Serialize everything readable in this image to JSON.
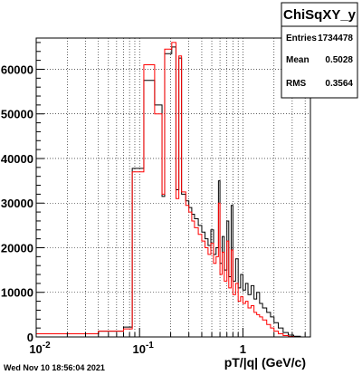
{
  "chart_data": {
    "type": "line",
    "histogram_name": "ChiSqXY_y",
    "xlabel": "pT/|q| (GeV/c)",
    "ylabel": "",
    "xscale": "log",
    "xlim": [
      0.01,
      4.5
    ],
    "ylim": [
      0,
      67000
    ],
    "grid": true,
    "x_ticks": [
      {
        "value": 0.01,
        "label": "10",
        "exp": "-2"
      },
      {
        "value": 0.1,
        "label": "10",
        "exp": "-1"
      },
      {
        "value": 1,
        "label": "1",
        "exp": ""
      }
    ],
    "y_ticks": [
      {
        "value": 0,
        "label": "0"
      },
      {
        "value": 10000,
        "label": "10000"
      },
      {
        "value": 20000,
        "label": "20000"
      },
      {
        "value": 30000,
        "label": "30000"
      },
      {
        "value": 40000,
        "label": "40000"
      },
      {
        "value": 50000,
        "label": "50000"
      },
      {
        "value": 60000,
        "label": "60000"
      }
    ],
    "series": [
      {
        "color": "#000000",
        "points": [
          [
            0.01,
            700
          ],
          [
            0.04,
            700
          ],
          [
            0.04,
            1300
          ],
          [
            0.07,
            1300
          ],
          [
            0.07,
            2200
          ],
          [
            0.085,
            2200
          ],
          [
            0.085,
            37800
          ],
          [
            0.11,
            37800
          ],
          [
            0.11,
            57500
          ],
          [
            0.14,
            57500
          ],
          [
            0.14,
            52000
          ],
          [
            0.165,
            52000
          ],
          [
            0.165,
            31500
          ],
          [
            0.175,
            31500
          ],
          [
            0.175,
            63500
          ],
          [
            0.205,
            63500
          ],
          [
            0.205,
            65000
          ],
          [
            0.225,
            65000
          ],
          [
            0.225,
            33000
          ],
          [
            0.24,
            33000
          ],
          [
            0.24,
            62500
          ],
          [
            0.255,
            62500
          ],
          [
            0.255,
            32000
          ],
          [
            0.28,
            32000
          ],
          [
            0.28,
            30500
          ],
          [
            0.3,
            30500
          ],
          [
            0.3,
            29000
          ],
          [
            0.32,
            29000
          ],
          [
            0.32,
            27500
          ],
          [
            0.34,
            27500
          ],
          [
            0.34,
            26500
          ],
          [
            0.37,
            26500
          ],
          [
            0.37,
            25000
          ],
          [
            0.4,
            25000
          ],
          [
            0.4,
            23500
          ],
          [
            0.43,
            23500
          ],
          [
            0.43,
            22000
          ],
          [
            0.46,
            22000
          ],
          [
            0.46,
            20500
          ],
          [
            0.49,
            20500
          ],
          [
            0.49,
            24000
          ],
          [
            0.52,
            24000
          ],
          [
            0.52,
            18500
          ],
          [
            0.55,
            18500
          ],
          [
            0.55,
            20000
          ],
          [
            0.58,
            20000
          ],
          [
            0.58,
            35000
          ],
          [
            0.6,
            35000
          ],
          [
            0.6,
            16500
          ],
          [
            0.63,
            16500
          ],
          [
            0.63,
            22500
          ],
          [
            0.66,
            22500
          ],
          [
            0.66,
            15000
          ],
          [
            0.7,
            15000
          ],
          [
            0.7,
            26000
          ],
          [
            0.73,
            26000
          ],
          [
            0.73,
            13500
          ],
          [
            0.77,
            13500
          ],
          [
            0.77,
            29500
          ],
          [
            0.8,
            29500
          ],
          [
            0.8,
            12500
          ],
          [
            0.85,
            12500
          ],
          [
            0.85,
            17500
          ],
          [
            0.9,
            17500
          ],
          [
            0.9,
            11000
          ],
          [
            0.95,
            11000
          ],
          [
            0.95,
            14000
          ],
          [
            1.0,
            14000
          ],
          [
            1.0,
            10500
          ],
          [
            1.06,
            10500
          ],
          [
            1.06,
            12000
          ],
          [
            1.12,
            12000
          ],
          [
            1.12,
            9500
          ],
          [
            1.2,
            9500
          ],
          [
            1.2,
            11500
          ],
          [
            1.28,
            11500
          ],
          [
            1.28,
            8500
          ],
          [
            1.36,
            8500
          ],
          [
            1.36,
            10000
          ],
          [
            1.45,
            10000
          ],
          [
            1.45,
            7500
          ],
          [
            1.55,
            7500
          ],
          [
            1.55,
            6500
          ],
          [
            1.7,
            6500
          ],
          [
            1.7,
            5500
          ],
          [
            1.85,
            5500
          ],
          [
            1.85,
            4500
          ],
          [
            2.0,
            4500
          ],
          [
            2.0,
            3200
          ],
          [
            2.2,
            3200
          ],
          [
            2.2,
            2000
          ],
          [
            2.45,
            2000
          ],
          [
            2.45,
            1000
          ],
          [
            2.75,
            1000
          ],
          [
            2.75,
            400
          ],
          [
            3.1,
            400
          ],
          [
            3.1,
            150
          ],
          [
            3.6,
            150
          ],
          [
            3.6,
            0
          ],
          [
            4.5,
            0
          ]
        ]
      },
      {
        "color": "#ff0000",
        "points": [
          [
            0.01,
            700
          ],
          [
            0.04,
            700
          ],
          [
            0.04,
            1300
          ],
          [
            0.07,
            1300
          ],
          [
            0.07,
            1800
          ],
          [
            0.085,
            1800
          ],
          [
            0.085,
            37000
          ],
          [
            0.11,
            37000
          ],
          [
            0.11,
            61000
          ],
          [
            0.14,
            61000
          ],
          [
            0.14,
            50000
          ],
          [
            0.165,
            50000
          ],
          [
            0.165,
            32000
          ],
          [
            0.175,
            32000
          ],
          [
            0.175,
            64500
          ],
          [
            0.205,
            64500
          ],
          [
            0.205,
            66000
          ],
          [
            0.225,
            66000
          ],
          [
            0.225,
            31000
          ],
          [
            0.24,
            31000
          ],
          [
            0.24,
            63000
          ],
          [
            0.255,
            63000
          ],
          [
            0.255,
            32500
          ],
          [
            0.28,
            32500
          ],
          [
            0.28,
            29500
          ],
          [
            0.3,
            29500
          ],
          [
            0.3,
            28000
          ],
          [
            0.32,
            28000
          ],
          [
            0.32,
            26000
          ],
          [
            0.34,
            26000
          ],
          [
            0.34,
            24500
          ],
          [
            0.37,
            24500
          ],
          [
            0.37,
            23000
          ],
          [
            0.4,
            23000
          ],
          [
            0.4,
            21500
          ],
          [
            0.43,
            21500
          ],
          [
            0.43,
            20000
          ],
          [
            0.46,
            20000
          ],
          [
            0.46,
            18500
          ],
          [
            0.49,
            18500
          ],
          [
            0.49,
            21000
          ],
          [
            0.52,
            21000
          ],
          [
            0.52,
            16500
          ],
          [
            0.55,
            16500
          ],
          [
            0.55,
            18000
          ],
          [
            0.58,
            18000
          ],
          [
            0.58,
            30000
          ],
          [
            0.6,
            30000
          ],
          [
            0.6,
            14000
          ],
          [
            0.63,
            14000
          ],
          [
            0.63,
            19000
          ],
          [
            0.66,
            19000
          ],
          [
            0.66,
            12500
          ],
          [
            0.7,
            12500
          ],
          [
            0.7,
            21500
          ],
          [
            0.73,
            21500
          ],
          [
            0.73,
            11000
          ],
          [
            0.77,
            11000
          ],
          [
            0.77,
            19500
          ],
          [
            0.8,
            19500
          ],
          [
            0.8,
            9500
          ],
          [
            0.85,
            9500
          ],
          [
            0.85,
            12000
          ],
          [
            0.9,
            12000
          ],
          [
            0.9,
            8000
          ],
          [
            0.95,
            8000
          ],
          [
            0.95,
            9000
          ],
          [
            1.0,
            9000
          ],
          [
            1.0,
            7500
          ],
          [
            1.06,
            7500
          ],
          [
            1.06,
            8000
          ],
          [
            1.12,
            8000
          ],
          [
            1.12,
            6500
          ],
          [
            1.2,
            6500
          ],
          [
            1.2,
            7000
          ],
          [
            1.28,
            7000
          ],
          [
            1.28,
            5500
          ],
          [
            1.36,
            5500
          ],
          [
            1.36,
            5000
          ],
          [
            1.45,
            5000
          ],
          [
            1.45,
            4500
          ],
          [
            1.55,
            4500
          ],
          [
            1.55,
            3800
          ],
          [
            1.7,
            3800
          ],
          [
            1.7,
            2800
          ],
          [
            1.85,
            2800
          ],
          [
            1.85,
            2000
          ],
          [
            2.0,
            2000
          ],
          [
            2.0,
            1300
          ],
          [
            2.2,
            1300
          ],
          [
            2.2,
            700
          ],
          [
            2.45,
            700
          ],
          [
            2.45,
            300
          ],
          [
            2.75,
            300
          ],
          [
            2.75,
            100
          ],
          [
            3.1,
            100
          ],
          [
            3.1,
            0
          ],
          [
            4.5,
            0
          ]
        ]
      }
    ]
  },
  "stats": {
    "title": "ChiSqXY_y",
    "entries_label": "Entries",
    "entries_value": "1734478",
    "mean_label": "Mean",
    "mean_value": "0.5028",
    "rms_label": "RMS",
    "rms_value": "0.3564"
  },
  "footer": {
    "timestamp": "Wed Nov 10 18:56:04 2021"
  },
  "colors": {
    "series_a": "#000000",
    "series_b": "#ff0000",
    "background": "#ffffff",
    "grid": "#000000"
  }
}
